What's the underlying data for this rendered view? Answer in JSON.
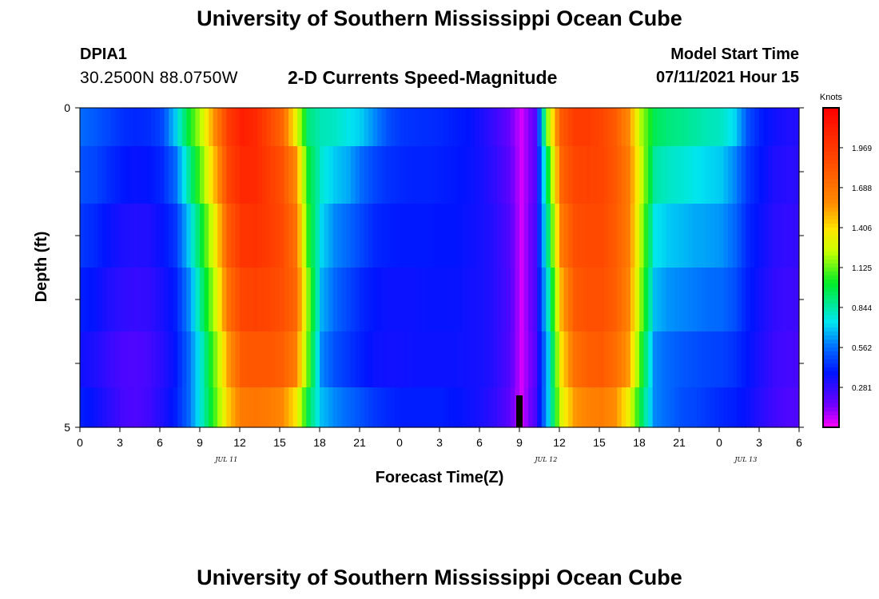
{
  "header": {
    "title": "University of Southern Mississippi Ocean Cube",
    "station_id": "DPIA1",
    "coordinates": "30.2500N  88.0750W",
    "subtitle": "2-D Currents Speed-Magnitude",
    "model_label": "Model Start Time",
    "model_time": "07/11/2021 Hour 15"
  },
  "footer": {
    "title": "University of Southern Mississippi Ocean Cube"
  },
  "chart_data": {
    "type": "heatmap",
    "title": "2-D Currents Speed-Magnitude",
    "xlabel": "Forecast Time(Z)",
    "ylabel": "Depth (ft)",
    "x_tick_labels": [
      "0",
      "3",
      "6",
      "9",
      "12",
      "15",
      "18",
      "21",
      "0",
      "3",
      "6",
      "9",
      "12",
      "15",
      "18",
      "21",
      "0",
      "3",
      "6"
    ],
    "x_hours_range": [
      0,
      54
    ],
    "date_labels": [
      {
        "text": "JUL 11",
        "hour": 11
      },
      {
        "text": "JUL 12",
        "hour": 35
      },
      {
        "text": "JUL 13",
        "hour": 50
      }
    ],
    "y_tick_labels": [
      {
        "text": "0",
        "value": 0
      },
      {
        "text": "5",
        "value": 5
      }
    ],
    "ylim": [
      0,
      5
    ],
    "depth_levels": [
      0.2,
      1.0,
      2.0,
      3.0,
      4.0,
      4.75
    ],
    "colorbar": {
      "unit": "Knots",
      "vmin": 0.0,
      "vmax": 2.25,
      "labels": [
        "1.969",
        "1.688",
        "1.406",
        "1.125",
        "0.844",
        "0.562",
        "0.281"
      ],
      "label_values": [
        1.969,
        1.688,
        1.406,
        1.125,
        0.844,
        0.562,
        0.281
      ]
    },
    "profiles": [
      {
        "hour": 0,
        "speed": [
          0.55,
          0.5,
          0.45,
          0.4,
          0.35,
          0.4
        ]
      },
      {
        "hour": 1,
        "speed": [
          0.52,
          0.48,
          0.42,
          0.37,
          0.32,
          0.36
        ]
      },
      {
        "hour": 2,
        "speed": [
          0.48,
          0.43,
          0.37,
          0.32,
          0.27,
          0.3
        ]
      },
      {
        "hour": 3,
        "speed": [
          0.44,
          0.39,
          0.33,
          0.29,
          0.23,
          0.24
        ]
      },
      {
        "hour": 4,
        "speed": [
          0.42,
          0.37,
          0.31,
          0.27,
          0.22,
          0.22
        ]
      },
      {
        "hour": 5,
        "speed": [
          0.43,
          0.38,
          0.32,
          0.28,
          0.24,
          0.25
        ]
      },
      {
        "hour": 6,
        "speed": [
          0.48,
          0.42,
          0.37,
          0.33,
          0.3,
          0.32
        ]
      },
      {
        "hour": 7,
        "speed": [
          0.7,
          0.55,
          0.45,
          0.4,
          0.38,
          0.4
        ]
      },
      {
        "hour": 8,
        "speed": [
          1.0,
          0.85,
          0.7,
          0.6,
          0.55,
          0.55
        ]
      },
      {
        "hour": 9,
        "speed": [
          1.25,
          1.15,
          1.0,
          0.9,
          0.8,
          0.8
        ]
      },
      {
        "hour": 10,
        "speed": [
          1.6,
          1.5,
          1.35,
          1.25,
          1.15,
          1.1
        ]
      },
      {
        "hour": 11,
        "speed": [
          1.95,
          1.9,
          1.8,
          1.7,
          1.55,
          1.45
        ]
      },
      {
        "hour": 12,
        "speed": [
          2.1,
          2.05,
          1.98,
          1.9,
          1.8,
          1.65
        ]
      },
      {
        "hour": 13,
        "speed": [
          2.05,
          2.05,
          2.0,
          1.92,
          1.82,
          1.68
        ]
      },
      {
        "hour": 14,
        "speed": [
          1.9,
          1.95,
          1.95,
          1.9,
          1.82,
          1.65
        ]
      },
      {
        "hour": 15,
        "speed": [
          1.75,
          1.85,
          1.88,
          1.85,
          1.78,
          1.6
        ]
      },
      {
        "hour": 16,
        "speed": [
          1.35,
          1.6,
          1.7,
          1.75,
          1.65,
          1.4
        ]
      },
      {
        "hour": 17,
        "speed": [
          0.9,
          1.0,
          1.05,
          1.15,
          1.1,
          0.95
        ]
      },
      {
        "hour": 18,
        "speed": [
          0.82,
          0.78,
          0.72,
          0.66,
          0.6,
          0.68
        ]
      },
      {
        "hour": 19,
        "speed": [
          0.8,
          0.7,
          0.6,
          0.55,
          0.5,
          0.6
        ]
      },
      {
        "hour": 20,
        "speed": [
          0.75,
          0.65,
          0.55,
          0.48,
          0.45,
          0.55
        ]
      },
      {
        "hour": 21,
        "speed": [
          0.7,
          0.55,
          0.48,
          0.42,
          0.4,
          0.5
        ]
      },
      {
        "hour": 22,
        "speed": [
          0.6,
          0.48,
          0.42,
          0.38,
          0.36,
          0.45
        ]
      },
      {
        "hour": 23,
        "speed": [
          0.5,
          0.44,
          0.4,
          0.36,
          0.35,
          0.42
        ]
      },
      {
        "hour": 24,
        "speed": [
          0.45,
          0.42,
          0.39,
          0.36,
          0.35,
          0.4
        ]
      },
      {
        "hour": 25,
        "speed": [
          0.44,
          0.41,
          0.39,
          0.36,
          0.36,
          0.4
        ]
      },
      {
        "hour": 26,
        "speed": [
          0.43,
          0.41,
          0.39,
          0.37,
          0.36,
          0.4
        ]
      },
      {
        "hour": 27,
        "speed": [
          0.42,
          0.4,
          0.38,
          0.37,
          0.36,
          0.4
        ]
      },
      {
        "hour": 28,
        "speed": [
          0.4,
          0.39,
          0.38,
          0.37,
          0.36,
          0.38
        ]
      },
      {
        "hour": 29,
        "speed": [
          0.38,
          0.37,
          0.36,
          0.35,
          0.35,
          0.36
        ]
      },
      {
        "hour": 30,
        "speed": [
          0.33,
          0.34,
          0.34,
          0.34,
          0.34,
          0.33
        ]
      },
      {
        "hour": 31,
        "speed": [
          0.26,
          0.28,
          0.3,
          0.3,
          0.3,
          0.28
        ]
      },
      {
        "hour": 32,
        "speed": [
          0.18,
          0.2,
          0.22,
          0.23,
          0.22,
          0.2
        ]
      },
      {
        "hour": 33,
        "speed": [
          0.05,
          0.05,
          0.05,
          0.05,
          0.05,
          0.05
        ]
      },
      {
        "hour": 34,
        "speed": [
          0.2,
          0.2,
          0.22,
          0.22,
          0.2,
          0.22
        ]
      },
      {
        "hour": 35,
        "speed": [
          1.2,
          1.0,
          0.9,
          0.8,
          0.7,
          0.7
        ]
      },
      {
        "hour": 36,
        "speed": [
          1.8,
          1.75,
          1.65,
          1.5,
          1.4,
          1.3
        ]
      },
      {
        "hour": 37,
        "speed": [
          1.95,
          1.9,
          1.85,
          1.8,
          1.7,
          1.55
        ]
      },
      {
        "hour": 38,
        "speed": [
          1.95,
          1.92,
          1.88,
          1.85,
          1.78,
          1.62
        ]
      },
      {
        "hour": 39,
        "speed": [
          1.9,
          1.9,
          1.88,
          1.85,
          1.8,
          1.65
        ]
      },
      {
        "hour": 40,
        "speed": [
          1.8,
          1.82,
          1.8,
          1.78,
          1.72,
          1.58
        ]
      },
      {
        "hour": 41,
        "speed": [
          1.6,
          1.65,
          1.65,
          1.62,
          1.55,
          1.35
        ]
      },
      {
        "hour": 42,
        "speed": [
          1.2,
          1.25,
          1.2,
          1.15,
          1.05,
          0.95
        ]
      },
      {
        "hour": 43,
        "speed": [
          0.95,
          0.85,
          0.75,
          0.68,
          0.6,
          0.6
        ]
      },
      {
        "hour": 44,
        "speed": [
          0.9,
          0.8,
          0.7,
          0.62,
          0.55,
          0.55
        ]
      },
      {
        "hour": 45,
        "speed": [
          0.88,
          0.78,
          0.68,
          0.6,
          0.52,
          0.5
        ]
      },
      {
        "hour": 46,
        "speed": [
          0.85,
          0.75,
          0.65,
          0.58,
          0.5,
          0.48
        ]
      },
      {
        "hour": 47,
        "speed": [
          0.82,
          0.72,
          0.64,
          0.56,
          0.48,
          0.45
        ]
      },
      {
        "hour": 48,
        "speed": [
          0.8,
          0.7,
          0.62,
          0.55,
          0.47,
          0.42
        ]
      },
      {
        "hour": 49,
        "speed": [
          0.72,
          0.6,
          0.55,
          0.5,
          0.44,
          0.4
        ]
      },
      {
        "hour": 50,
        "speed": [
          0.5,
          0.45,
          0.42,
          0.4,
          0.38,
          0.36
        ]
      },
      {
        "hour": 51,
        "speed": [
          0.4,
          0.38,
          0.36,
          0.34,
          0.32,
          0.3
        ]
      },
      {
        "hour": 52,
        "speed": [
          0.35,
          0.32,
          0.3,
          0.28,
          0.26,
          0.25
        ]
      },
      {
        "hour": 53,
        "speed": [
          0.32,
          0.3,
          0.28,
          0.26,
          0.24,
          0.22
        ]
      }
    ],
    "marker": {
      "hour": 33,
      "depth_from": 4.5,
      "depth_to": 5.0,
      "color": "#000000"
    }
  }
}
